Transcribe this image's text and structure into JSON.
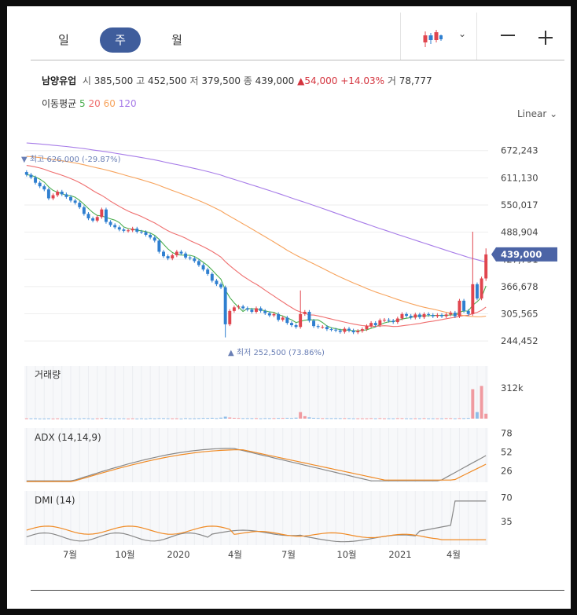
{
  "tabs": [
    {
      "label": "일"
    },
    {
      "label": "주"
    },
    {
      "label": "월"
    }
  ],
  "stock": {
    "name": "남양유업",
    "open_label": "시",
    "open": "385,500",
    "high_label": "고",
    "high": "452,500",
    "low_label": "저",
    "low": "379,500",
    "close_label": "종",
    "close": "439,000",
    "change": "54,000",
    "change_pct": "+14.03%",
    "volume_label": "거",
    "volume": "78,777"
  },
  "ma_legend": {
    "label": "이동평균",
    "periods": [
      "5",
      "20",
      "60",
      "120"
    ]
  },
  "scale_mode": "Linear",
  "colors": {
    "up": "#e0454e",
    "down": "#2f7fd0",
    "ma5": "#4caf50",
    "ma20": "#ef6f6f",
    "ma60": "#f7a35c",
    "ma120": "#a77ce8",
    "adx": "#888888",
    "adx2": "#f08a24",
    "accent": "#4c64a6"
  },
  "chart_data": [
    {
      "type": "candlestick",
      "title": "남양유업",
      "y_ticks": [
        "672,243",
        "611,130",
        "550,017",
        "488,904",
        "427,791",
        "366,678",
        "305,565",
        "244,452"
      ],
      "ylim": [
        220000,
        700000
      ],
      "current_price_label": "439,000",
      "current_price": 439000,
      "high_marker": {
        "label": "최고",
        "value": "626,000",
        "pct": "(-29.87%)"
      },
      "low_marker": {
        "label": "최저",
        "value": "252,500",
        "pct": "(73.86%)"
      },
      "x_ticks": [
        "7월",
        "10월",
        "2020",
        "4월",
        "7월",
        "10월",
        "2021",
        "4월"
      ],
      "closes": [
        618000,
        612000,
        600000,
        592000,
        585000,
        565000,
        572000,
        580000,
        574000,
        568000,
        560000,
        555000,
        545000,
        530000,
        520000,
        515000,
        523000,
        540000,
        512000,
        505000,
        500000,
        495000,
        492000,
        493000,
        497000,
        490000,
        489000,
        483000,
        477000,
        470000,
        445000,
        435000,
        430000,
        437000,
        445000,
        441000,
        432000,
        430000,
        424000,
        415000,
        405000,
        395000,
        380000,
        372000,
        365000,
        282000,
        312000,
        320000,
        322000,
        318000,
        315000,
        310000,
        318000,
        312000,
        307000,
        302000,
        305000,
        292000,
        297000,
        285000,
        280000,
        276000,
        305000,
        310000,
        290000,
        278000,
        276000,
        276000,
        271000,
        270000,
        268000,
        265000,
        272000,
        268000,
        264000,
        267000,
        271000,
        278000,
        285000,
        280000,
        291000,
        292000,
        290000,
        287000,
        295000,
        305000,
        301000,
        297000,
        304000,
        298000,
        305000,
        303000,
        300000,
        303000,
        300000,
        304000,
        308000,
        300000,
        335000,
        312000,
        305000,
        372000,
        340000,
        385000,
        439000
      ]
    },
    {
      "type": "bar",
      "title": "거래량",
      "y_ticks": [
        "312k"
      ],
      "values": [
        2,
        2,
        2,
        1,
        1,
        2,
        1,
        2,
        1,
        1,
        1,
        2,
        1,
        3,
        2,
        1,
        2,
        3,
        4,
        2,
        1,
        2,
        2,
        1,
        2,
        1,
        2,
        1,
        3,
        2,
        3,
        3,
        2,
        2,
        2,
        1,
        3,
        2,
        2,
        3,
        4,
        4,
        5,
        3,
        6,
        12,
        7,
        5,
        4,
        3,
        3,
        3,
        3,
        2,
        3,
        3,
        3,
        4,
        4,
        5,
        4,
        6,
        40,
        15,
        8,
        5,
        4,
        3,
        3,
        3,
        3,
        3,
        3,
        3,
        2,
        2,
        2,
        2,
        3,
        2,
        3,
        2,
        2,
        2,
        3,
        3,
        2,
        2,
        2,
        2,
        3,
        2,
        2,
        2,
        2,
        3,
        3,
        2,
        3,
        3,
        4,
        180,
        40,
        200,
        30
      ],
      "max": 312
    },
    {
      "type": "line",
      "title": "ADX (14,14,9)",
      "y_ticks": [
        "78",
        "52",
        "26"
      ],
      "ylim": [
        10,
        85
      ]
    },
    {
      "type": "line",
      "title": "DMI (14)",
      "y_ticks": [
        "70",
        "35"
      ],
      "ylim": [
        0,
        80
      ]
    }
  ]
}
